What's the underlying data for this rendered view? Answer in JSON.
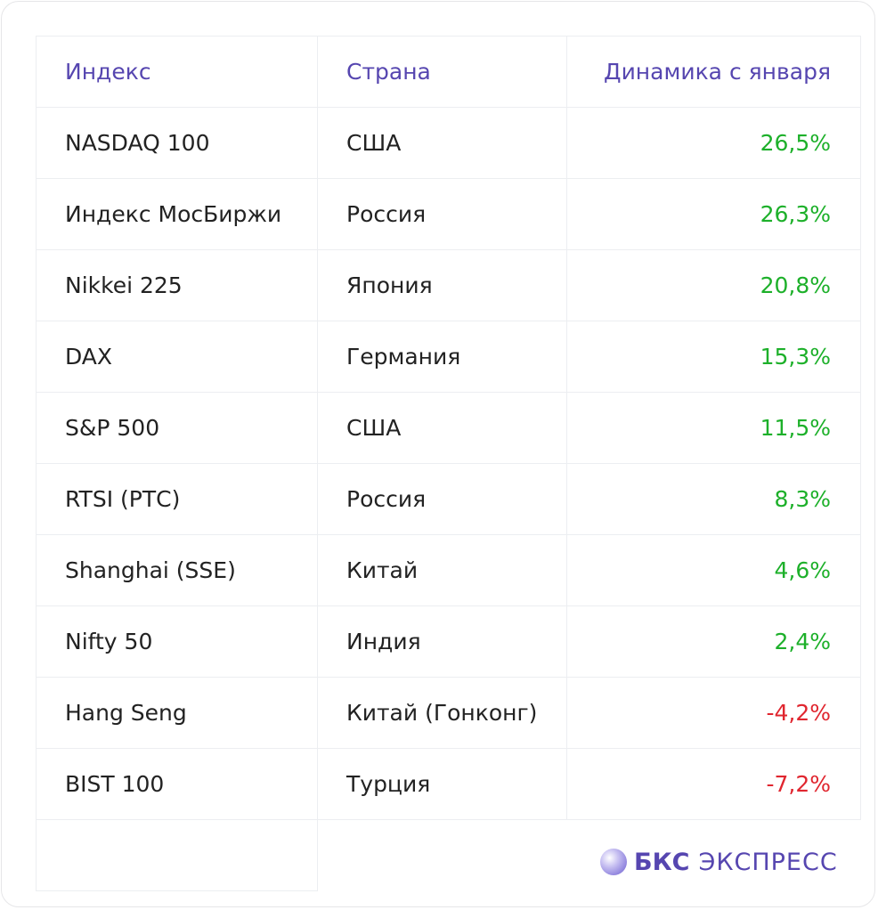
{
  "table": {
    "header": [
      "Индекс",
      "Страна",
      "Динамика с января"
    ],
    "rows": [
      [
        "NASDAQ 100",
        "США",
        "26,5%"
      ],
      [
        "Индекс МосБиржи",
        "Россия",
        "26,3%"
      ],
      [
        "Nikkei 225",
        "Япония",
        "20,8%"
      ],
      [
        "DAX",
        "Германия",
        "15,3%"
      ],
      [
        "S&P 500",
        "США",
        "11,5%"
      ],
      [
        "RTSI (РТС)",
        "Россия",
        "8,3%"
      ],
      [
        "Shanghai (SSE)",
        "Китай",
        "4,6%"
      ],
      [
        "Nifty 50",
        "Индия",
        "2,4%"
      ],
      [
        "Hang Seng",
        "Китай (Гонконг)",
        "-4,2%"
      ],
      [
        "BIST 100",
        "Турция",
        "-7,2%"
      ]
    ]
  },
  "logo": {
    "brand": "БКС",
    "product": "ЭКСПРЕСС"
  }
}
